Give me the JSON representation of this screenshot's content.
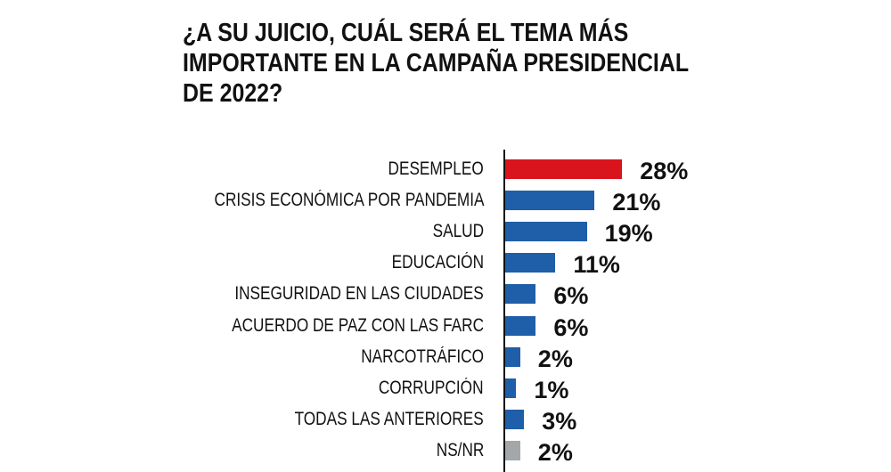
{
  "chart_data": {
    "type": "bar",
    "orientation": "horizontal",
    "title": "¿A SU JUICIO, CUÁL SERÁ EL TEMA MÁS\nIMPORTANTE EN LA CAMPAÑA PRESIDENCIAL\nDE 2022?",
    "categories": [
      "DESEMPLEO",
      "CRISIS ECONÓMICA POR PANDEMIA",
      "SALUD",
      "EDUCACIÓN",
      "INSEGURIDAD EN LAS CIUDADES",
      "ACUERDO DE PAZ CON LAS FARC",
      "NARCOTRÁFICO",
      "CORRUPCIÓN",
      "TODAS LAS ANTERIORES",
      "NS/NR"
    ],
    "values": [
      28,
      21,
      19,
      11,
      6,
      6,
      2,
      1,
      3,
      2
    ],
    "data_labels": [
      "28%",
      "21%",
      "19%",
      "11%",
      "6%",
      "6%",
      "2%",
      "1%",
      "3%",
      "2%"
    ],
    "colors": [
      "#d9141c",
      "#1f5ea8",
      "#1f5ea8",
      "#1f5ea8",
      "#1f5ea8",
      "#1f5ea8",
      "#1f5ea8",
      "#1f5ea8",
      "#1f5ea8",
      "#a3a7a9"
    ],
    "grid": false,
    "legend": "none"
  }
}
